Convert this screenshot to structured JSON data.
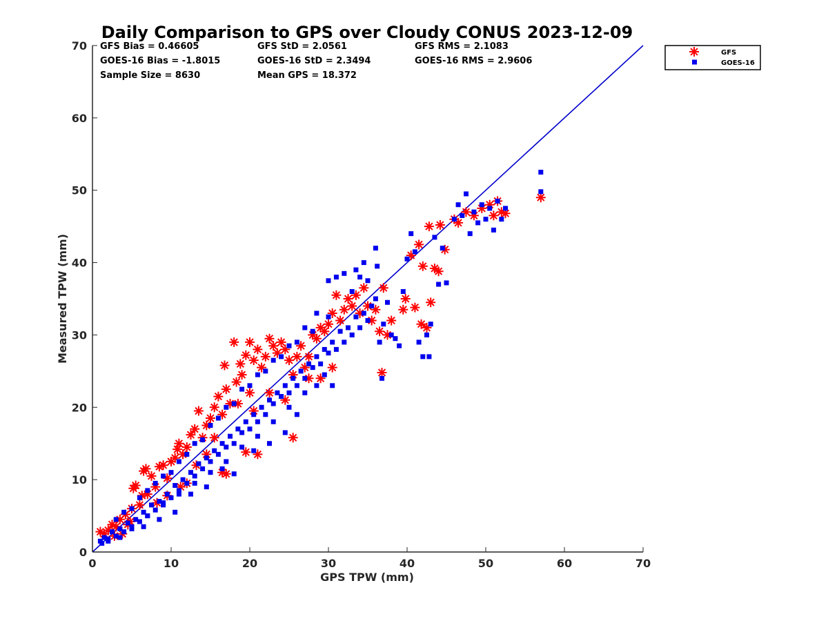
{
  "chart_data": {
    "type": "scatter",
    "title": "Daily Comparison to GPS over Cloudy CONUS 2023-12-09",
    "xlabel": "GPS TPW (mm)",
    "ylabel": "Measured TPW (mm)",
    "xlim": [
      0,
      70
    ],
    "ylim": [
      0,
      70
    ],
    "xticks": [
      0,
      10,
      20,
      30,
      40,
      50,
      60,
      70
    ],
    "yticks": [
      0,
      10,
      20,
      30,
      40,
      50,
      60,
      70
    ],
    "grid": false,
    "legend_position": "top-right outside",
    "stats": [
      [
        "GFS Bias = 0.46605",
        "GFS StD = 2.0561",
        "GFS RMS = 2.1083"
      ],
      [
        "GOES-16 Bias = -1.8015",
        "GOES-16 StD = 2.3494",
        "GOES-16 RMS = 2.9606"
      ],
      [
        "Sample Size = 8630",
        "Mean GPS = 18.372",
        ""
      ]
    ],
    "reference_line": {
      "x": [
        0,
        70
      ],
      "y": [
        0,
        70
      ],
      "color": "#0000cc"
    },
    "series": [
      {
        "name": "GFS",
        "marker": "asterisk",
        "color": "#ff0000",
        "points": [
          [
            1.0,
            2.8
          ],
          [
            1.5,
            2.5
          ],
          [
            2.0,
            3.0
          ],
          [
            2.5,
            3.8
          ],
          [
            3.0,
            3.5
          ],
          [
            3.5,
            4.5
          ],
          [
            3.8,
            2.5
          ],
          [
            4.2,
            5.2
          ],
          [
            4.5,
            3.8
          ],
          [
            5.0,
            6.0
          ],
          [
            5.5,
            9.2
          ],
          [
            6.0,
            6.5
          ],
          [
            6.3,
            7.8
          ],
          [
            6.8,
            11.5
          ],
          [
            7.0,
            8.0
          ],
          [
            7.5,
            10.5
          ],
          [
            8.0,
            9.0
          ],
          [
            8.5,
            11.8
          ],
          [
            9.0,
            12.0
          ],
          [
            9.5,
            10.2
          ],
          [
            10.0,
            12.5
          ],
          [
            10.5,
            13.0
          ],
          [
            11.0,
            15.0
          ],
          [
            11.5,
            13.5
          ],
          [
            12.0,
            14.5
          ],
          [
            12.5,
            16.2
          ],
          [
            13.0,
            17.0
          ],
          [
            13.5,
            19.5
          ],
          [
            14.0,
            15.8
          ],
          [
            14.5,
            17.5
          ],
          [
            15.0,
            18.5
          ],
          [
            15.5,
            20.0
          ],
          [
            16.0,
            21.5
          ],
          [
            16.5,
            19.0
          ],
          [
            16.8,
            25.8
          ],
          [
            17.0,
            22.5
          ],
          [
            17.5,
            20.5
          ],
          [
            18.0,
            29.0
          ],
          [
            18.3,
            23.5
          ],
          [
            18.8,
            26.0
          ],
          [
            19.0,
            24.5
          ],
          [
            19.5,
            27.2
          ],
          [
            20.0,
            22.0
          ],
          [
            20.0,
            29.0
          ],
          [
            20.5,
            26.5
          ],
          [
            21.0,
            28.0
          ],
          [
            21.5,
            25.5
          ],
          [
            22.0,
            27.0
          ],
          [
            22.5,
            29.5
          ],
          [
            23.0,
            28.5
          ],
          [
            23.5,
            27.5
          ],
          [
            24.0,
            29.0
          ],
          [
            24.5,
            28.0
          ],
          [
            25.0,
            26.5
          ],
          [
            25.5,
            24.5
          ],
          [
            26.0,
            27.0
          ],
          [
            26.5,
            28.5
          ],
          [
            27.0,
            25.5
          ],
          [
            27.5,
            27.0
          ],
          [
            28.0,
            30.0
          ],
          [
            28.5,
            29.5
          ],
          [
            29.0,
            31.0
          ],
          [
            29.5,
            30.5
          ],
          [
            30.0,
            31.5
          ],
          [
            30.5,
            33.0
          ],
          [
            31.0,
            35.5
          ],
          [
            31.5,
            32.0
          ],
          [
            32.0,
            33.5
          ],
          [
            32.5,
            35.0
          ],
          [
            33.0,
            34.0
          ],
          [
            33.5,
            35.5
          ],
          [
            34.0,
            33.0
          ],
          [
            34.5,
            36.5
          ],
          [
            35.0,
            34.0
          ],
          [
            35.5,
            32.0
          ],
          [
            36.0,
            33.5
          ],
          [
            36.5,
            30.5
          ],
          [
            36.8,
            24.8
          ],
          [
            37.0,
            36.5
          ],
          [
            37.5,
            30.0
          ],
          [
            38.0,
            32.0
          ],
          [
            39.5,
            33.5
          ],
          [
            39.8,
            35.0
          ],
          [
            40.5,
            41.0
          ],
          [
            41.0,
            33.8
          ],
          [
            41.5,
            42.5
          ],
          [
            41.8,
            31.5
          ],
          [
            42.0,
            39.5
          ],
          [
            42.5,
            31.0
          ],
          [
            42.8,
            45.0
          ],
          [
            43.0,
            34.5
          ],
          [
            43.5,
            39.2
          ],
          [
            44.0,
            38.8
          ],
          [
            44.2,
            45.2
          ],
          [
            44.8,
            41.8
          ],
          [
            46.0,
            46.0
          ],
          [
            46.5,
            45.5
          ],
          [
            47.5,
            47.0
          ],
          [
            48.5,
            46.5
          ],
          [
            49.5,
            47.5
          ],
          [
            50.5,
            48.0
          ],
          [
            51.0,
            46.5
          ],
          [
            51.5,
            48.5
          ],
          [
            52.0,
            47.0
          ],
          [
            52.5,
            46.8
          ],
          [
            57.0,
            49.0
          ],
          [
            15.5,
            15.8
          ],
          [
            16.5,
            11.0
          ],
          [
            17.0,
            10.8
          ],
          [
            19.5,
            13.8
          ],
          [
            21.0,
            13.5
          ],
          [
            25.5,
            15.8
          ],
          [
            29.0,
            24.0
          ],
          [
            30.5,
            25.5
          ],
          [
            27.5,
            24.0
          ],
          [
            24.5,
            21.0
          ],
          [
            22.5,
            22.0
          ],
          [
            20.5,
            19.5
          ],
          [
            18.5,
            20.5
          ],
          [
            12.0,
            9.5
          ],
          [
            9.5,
            7.8
          ],
          [
            14.5,
            13.5
          ],
          [
            6.5,
            11.2
          ],
          [
            5.2,
            8.8
          ],
          [
            10.8,
            14.2
          ],
          [
            13.2,
            12.0
          ],
          [
            11.2,
            9.0
          ],
          [
            8.2,
            6.8
          ],
          [
            2.8,
            2.2
          ],
          [
            4.8,
            4.2
          ]
        ]
      },
      {
        "name": "GOES-16",
        "marker": "square",
        "color": "#0000ee",
        "points": [
          [
            1.0,
            1.5
          ],
          [
            1.5,
            2.0
          ],
          [
            2.0,
            1.8
          ],
          [
            2.5,
            2.8
          ],
          [
            3.0,
            2.2
          ],
          [
            3.5,
            3.2
          ],
          [
            4.0,
            2.8
          ],
          [
            4.5,
            4.0
          ],
          [
            5.0,
            3.5
          ],
          [
            5.5,
            4.5
          ],
          [
            6.0,
            4.2
          ],
          [
            6.5,
            5.5
          ],
          [
            7.0,
            5.0
          ],
          [
            7.5,
            6.5
          ],
          [
            8.0,
            5.8
          ],
          [
            8.5,
            7.0
          ],
          [
            9.0,
            6.8
          ],
          [
            9.5,
            8.0
          ],
          [
            10.0,
            7.5
          ],
          [
            10.5,
            9.2
          ],
          [
            11.0,
            8.5
          ],
          [
            11.5,
            10.0
          ],
          [
            12.0,
            9.5
          ],
          [
            12.5,
            11.0
          ],
          [
            13.0,
            10.5
          ],
          [
            13.5,
            12.2
          ],
          [
            14.0,
            11.5
          ],
          [
            14.5,
            13.0
          ],
          [
            15.0,
            12.5
          ],
          [
            15.5,
            14.0
          ],
          [
            16.0,
            13.5
          ],
          [
            16.5,
            15.0
          ],
          [
            17.0,
            14.5
          ],
          [
            17.5,
            16.0
          ],
          [
            18.0,
            15.0
          ],
          [
            18.5,
            17.0
          ],
          [
            19.0,
            16.5
          ],
          [
            19.5,
            18.0
          ],
          [
            20.0,
            17.0
          ],
          [
            20.5,
            19.0
          ],
          [
            21.0,
            18.0
          ],
          [
            21.5,
            20.0
          ],
          [
            22.0,
            19.0
          ],
          [
            22.5,
            21.0
          ],
          [
            23.0,
            20.5
          ],
          [
            23.5,
            22.0
          ],
          [
            24.0,
            21.5
          ],
          [
            24.5,
            23.0
          ],
          [
            25.0,
            22.0
          ],
          [
            25.5,
            24.0
          ],
          [
            26.0,
            23.0
          ],
          [
            26.5,
            25.0
          ],
          [
            27.0,
            24.0
          ],
          [
            27.5,
            26.0
          ],
          [
            28.0,
            25.5
          ],
          [
            28.5,
            27.0
          ],
          [
            29.0,
            26.0
          ],
          [
            29.5,
            28.0
          ],
          [
            30.0,
            27.5
          ],
          [
            30.5,
            29.0
          ],
          [
            31.0,
            28.0
          ],
          [
            31.5,
            30.5
          ],
          [
            32.0,
            29.0
          ],
          [
            32.5,
            31.0
          ],
          [
            33.0,
            30.0
          ],
          [
            33.5,
            32.5
          ],
          [
            34.0,
            31.0
          ],
          [
            34.5,
            33.0
          ],
          [
            35.0,
            32.0
          ],
          [
            35.5,
            34.0
          ],
          [
            36.0,
            35.0
          ],
          [
            36.5,
            29.0
          ],
          [
            36.8,
            24.0
          ],
          [
            37.0,
            31.5
          ],
          [
            37.5,
            34.5
          ],
          [
            38.0,
            30.0
          ],
          [
            38.5,
            29.5
          ],
          [
            39.0,
            28.5
          ],
          [
            39.5,
            36.0
          ],
          [
            40.0,
            40.5
          ],
          [
            40.5,
            44.0
          ],
          [
            41.0,
            41.5
          ],
          [
            41.5,
            29.0
          ],
          [
            42.0,
            27.0
          ],
          [
            42.5,
            30.0
          ],
          [
            42.8,
            27.0
          ],
          [
            43.0,
            31.5
          ],
          [
            43.5,
            43.5
          ],
          [
            44.0,
            37.0
          ],
          [
            44.5,
            42.0
          ],
          [
            45.0,
            37.2
          ],
          [
            46.0,
            46.0
          ],
          [
            46.5,
            48.0
          ],
          [
            47.0,
            46.5
          ],
          [
            47.5,
            49.5
          ],
          [
            48.0,
            44.0
          ],
          [
            48.5,
            47.0
          ],
          [
            49.0,
            45.5
          ],
          [
            49.5,
            48.0
          ],
          [
            50.0,
            46.0
          ],
          [
            50.5,
            47.5
          ],
          [
            51.0,
            44.5
          ],
          [
            51.5,
            48.5
          ],
          [
            52.0,
            46.0
          ],
          [
            52.5,
            47.5
          ],
          [
            57.0,
            52.5
          ],
          [
            57.0,
            49.8
          ],
          [
            33.0,
            36.0
          ],
          [
            34.0,
            38.0
          ],
          [
            35.0,
            37.5
          ],
          [
            36.0,
            42.0
          ],
          [
            36.2,
            39.5
          ],
          [
            34.5,
            40.0
          ],
          [
            33.5,
            39.0
          ],
          [
            30.0,
            37.5
          ],
          [
            31.0,
            38.0
          ],
          [
            32.0,
            38.5
          ],
          [
            28.5,
            33.0
          ],
          [
            27.0,
            31.0
          ],
          [
            25.0,
            28.5
          ],
          [
            23.0,
            26.5
          ],
          [
            21.0,
            24.5
          ],
          [
            19.0,
            22.5
          ],
          [
            17.0,
            20.0
          ],
          [
            15.0,
            17.5
          ],
          [
            13.0,
            15.0
          ],
          [
            11.0,
            12.5
          ],
          [
            9.0,
            10.5
          ],
          [
            7.0,
            8.5
          ],
          [
            5.0,
            6.0
          ],
          [
            3.0,
            4.5
          ],
          [
            4.0,
            5.5
          ],
          [
            6.0,
            7.5
          ],
          [
            8.0,
            9.5
          ],
          [
            10.0,
            11.0
          ],
          [
            12.0,
            13.5
          ],
          [
            14.0,
            15.5
          ],
          [
            16.0,
            18.5
          ],
          [
            18.0,
            20.5
          ],
          [
            20.0,
            23.0
          ],
          [
            22.0,
            25.0
          ],
          [
            24.0,
            27.0
          ],
          [
            26.0,
            29.0
          ],
          [
            28.0,
            30.5
          ],
          [
            30.0,
            32.5
          ],
          [
            27.0,
            22.0
          ],
          [
            25.0,
            20.0
          ],
          [
            23.0,
            18.0
          ],
          [
            21.0,
            16.0
          ],
          [
            19.0,
            14.5
          ],
          [
            17.0,
            12.5
          ],
          [
            15.0,
            11.0
          ],
          [
            13.0,
            9.5
          ],
          [
            11.0,
            8.0
          ],
          [
            9.0,
            6.5
          ],
          [
            7.0,
            5.0
          ],
          [
            5.0,
            3.2
          ],
          [
            3.5,
            2.0
          ],
          [
            26.0,
            19.0
          ],
          [
            28.5,
            23.0
          ],
          [
            30.5,
            23.0
          ],
          [
            29.5,
            24.5
          ],
          [
            24.5,
            16.5
          ],
          [
            22.5,
            15.0
          ],
          [
            20.5,
            14.0
          ],
          [
            18.0,
            10.8
          ],
          [
            16.5,
            11.5
          ],
          [
            14.5,
            9.0
          ],
          [
            6.5,
            3.5
          ],
          [
            8.5,
            4.5
          ],
          [
            10.5,
            5.5
          ],
          [
            12.5,
            8.0
          ],
          [
            2.0,
            1.5
          ],
          [
            1.2,
            1.2
          ]
        ]
      }
    ]
  }
}
